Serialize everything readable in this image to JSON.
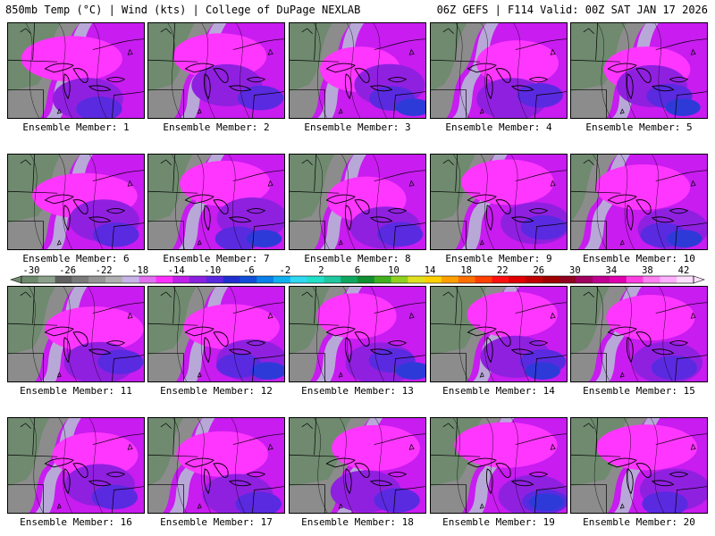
{
  "header": {
    "title_left": "850mb Temp (°C) | Wind (kts) | College of DuPage NEXLAB",
    "title_right": "06Z GEFS | F114 Valid: 00Z SAT JAN 17 2026"
  },
  "panel_label_prefix": "Ensemble Member:",
  "members": [
    {
      "number": "1"
    },
    {
      "number": "2"
    },
    {
      "number": "3"
    },
    {
      "number": "4"
    },
    {
      "number": "5"
    },
    {
      "number": "6"
    },
    {
      "number": "7"
    },
    {
      "number": "8"
    },
    {
      "number": "9"
    },
    {
      "number": "10"
    },
    {
      "number": "11"
    },
    {
      "number": "12"
    },
    {
      "number": "13"
    },
    {
      "number": "14"
    },
    {
      "number": "15"
    },
    {
      "number": "16"
    },
    {
      "number": "17"
    },
    {
      "number": "18"
    },
    {
      "number": "19"
    },
    {
      "number": "20"
    }
  ],
  "colorbar": {
    "labels": [
      "-30",
      "-26",
      "-22",
      "-18",
      "-14",
      "-10",
      "-6",
      "-2",
      "2",
      "6",
      "10",
      "14",
      "18",
      "22",
      "26",
      "30",
      "34",
      "38",
      "42"
    ],
    "colors": [
      "#6e8a6e",
      "#8aa08a",
      "#606060",
      "#7a7a7a",
      "#959595",
      "#b0b0b0",
      "#c8b4e8",
      "#e070f0",
      "#ff30ff",
      "#c020e8",
      "#8a20e0",
      "#5a28e0",
      "#2030d0",
      "#1050d8",
      "#0a80e8",
      "#10b0f0",
      "#30d8f0",
      "#20e0c8",
      "#20c8a0",
      "#10a860",
      "#109030",
      "#40b020",
      "#90d020",
      "#e0e020",
      "#ffd000",
      "#ffa000",
      "#ff7000",
      "#ff4000",
      "#ff1010",
      "#e00000",
      "#c00000",
      "#a00000",
      "#900020",
      "#a00060",
      "#c00090",
      "#e000b0",
      "#ff40e0",
      "#ff80f0",
      "#ffb0ff",
      "#ffe0ff"
    ]
  }
}
